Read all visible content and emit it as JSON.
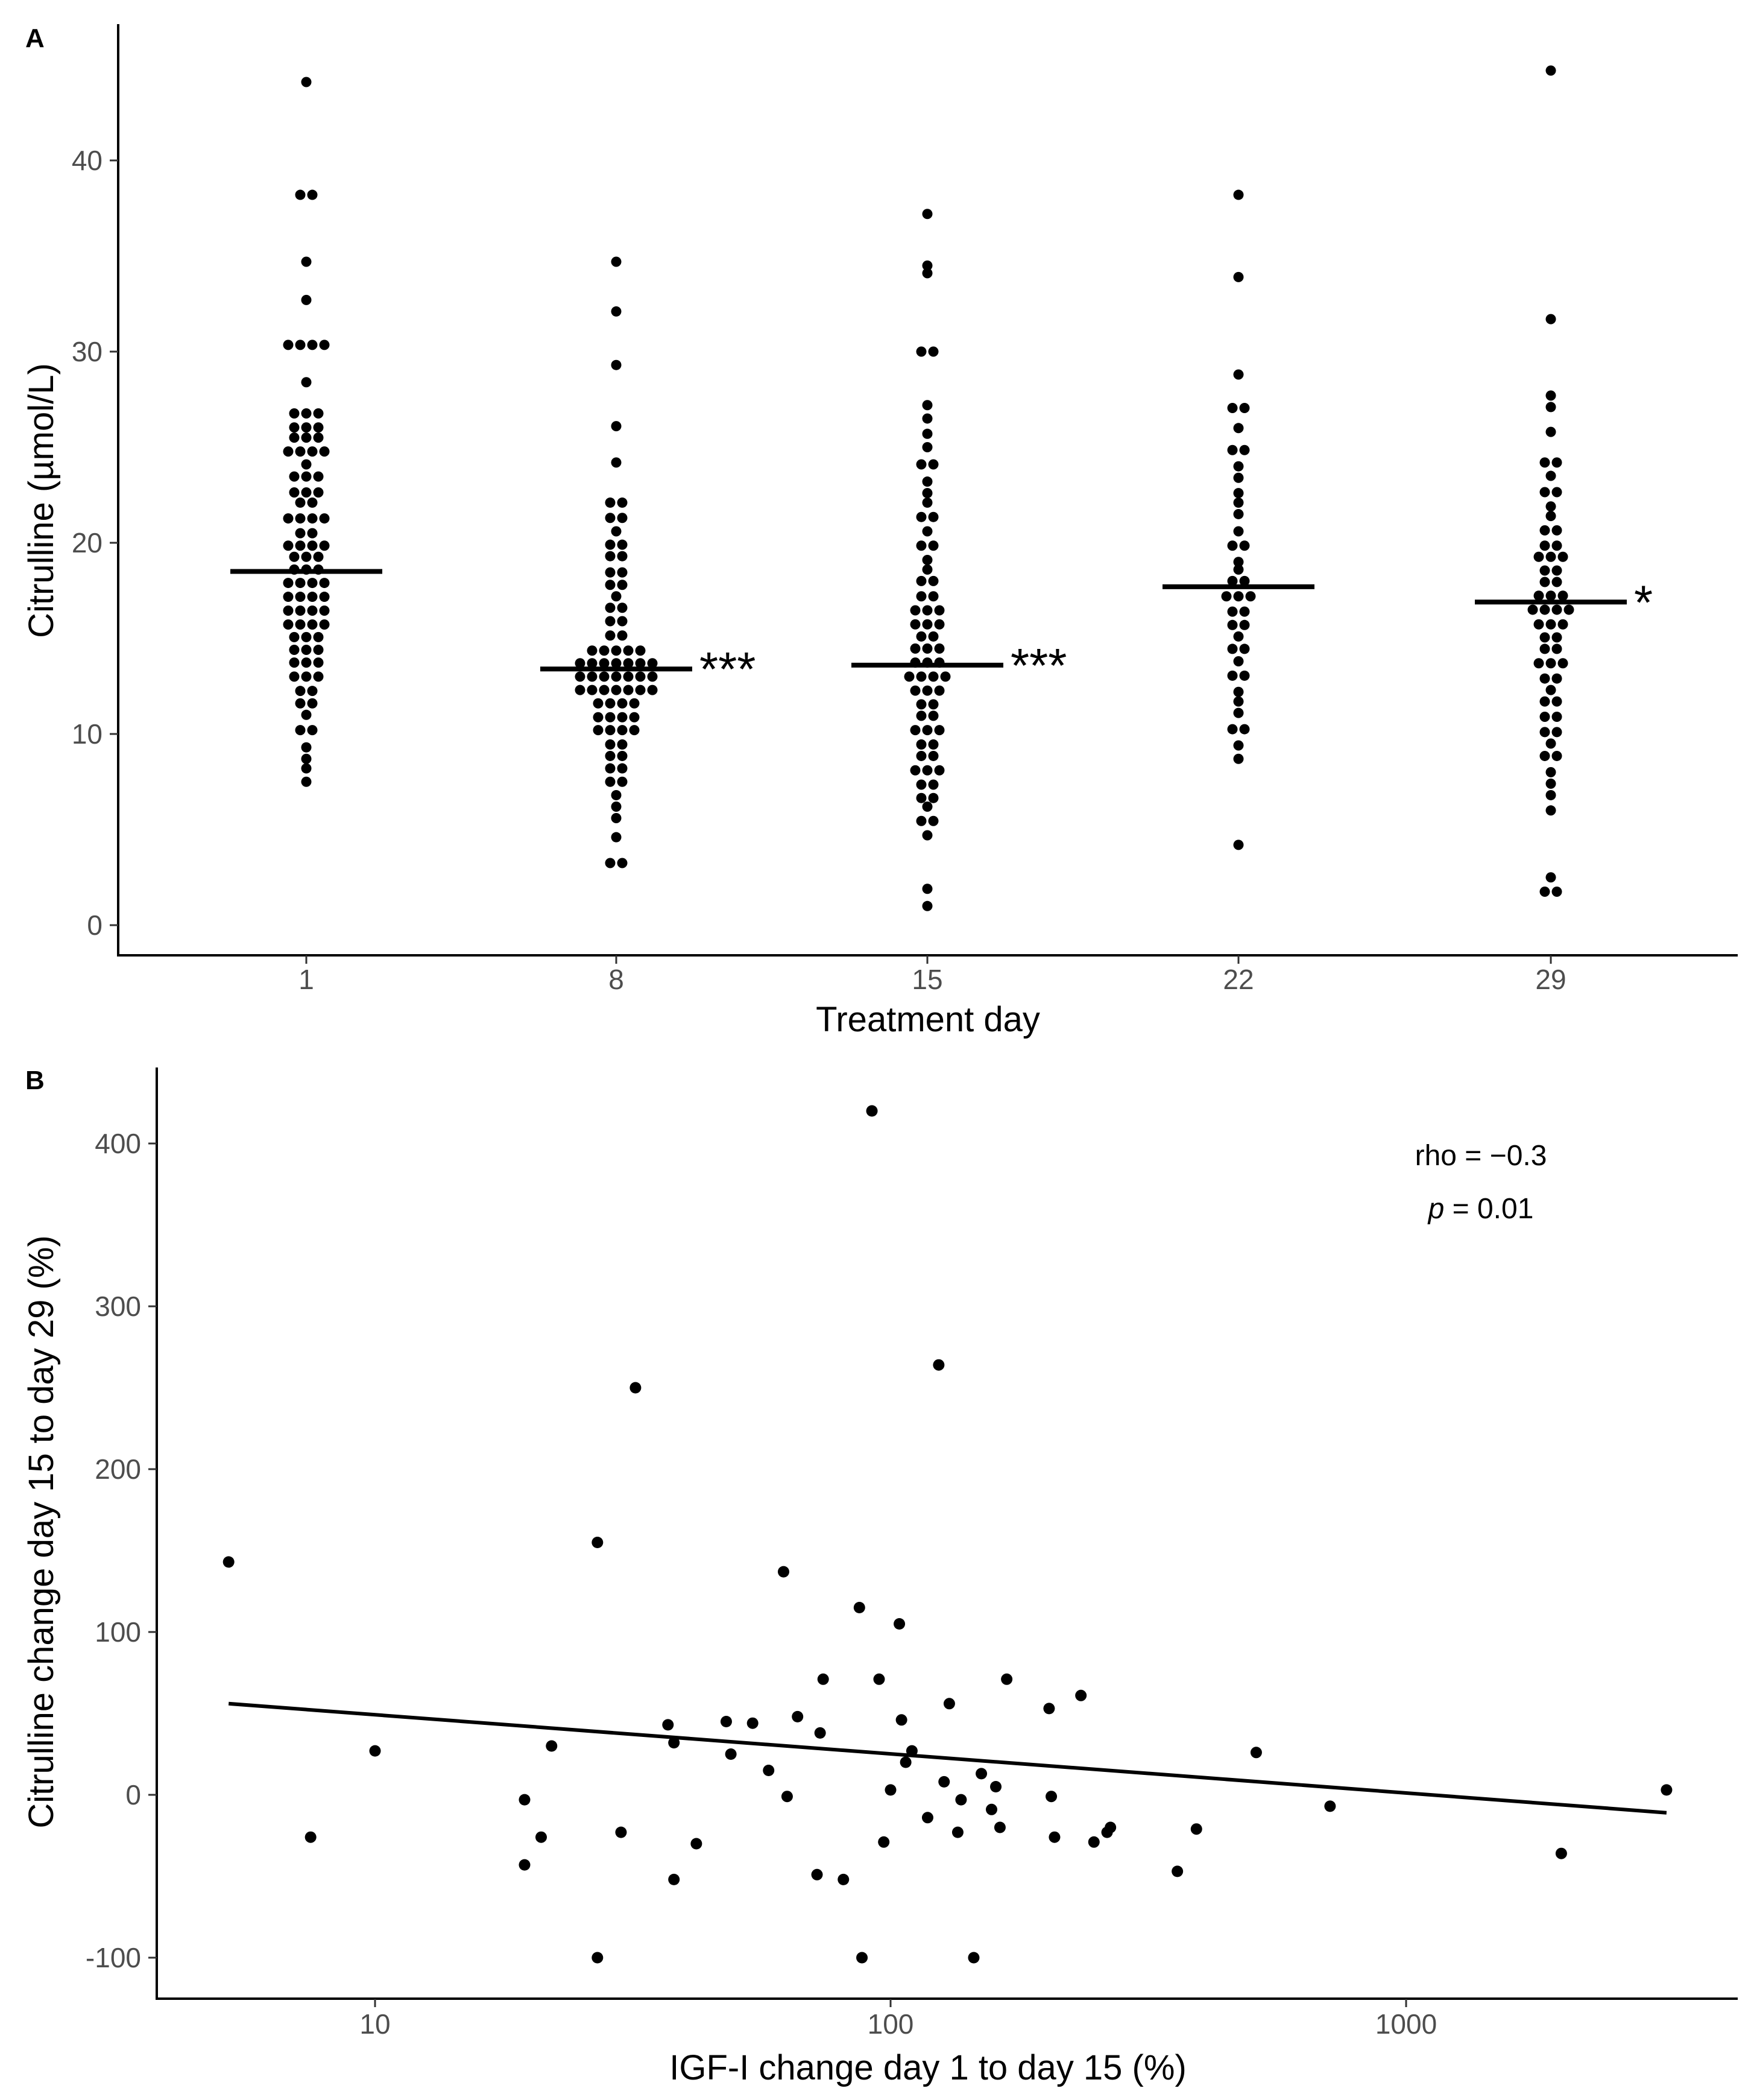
{
  "chart_data": [
    {
      "panel": "A",
      "type": "scatter",
      "subtype": "dot-plot (beeswarm) with median bars",
      "title": "",
      "xlabel": "Treatment day",
      "ylabel": "Citrulline (µmol/L)",
      "categories": [
        "1",
        "8",
        "15",
        "22",
        "29"
      ],
      "ylim": [
        0,
        45
      ],
      "yticks": [
        0,
        10,
        20,
        30,
        40
      ],
      "grid": false,
      "medians": [
        18.5,
        13.4,
        13.6,
        17.7,
        16.9
      ],
      "significance": [
        "",
        "***",
        "***",
        "",
        "*"
      ],
      "series": [
        {
          "name": "1",
          "values": [
            44.1,
            38.2,
            38.2,
            34.7,
            32.7,
            30.6,
            30.6,
            30.1,
            30.1,
            28.4,
            26.9,
            26.7,
            26.7,
            26.1,
            26.0,
            26.0,
            25.7,
            25.5,
            25.3,
            25.0,
            24.9,
            24.7,
            24.5,
            24.1,
            23.6,
            23.6,
            23.2,
            22.9,
            22.6,
            22.4,
            22.2,
            22.0,
            21.6,
            21.3,
            21.2,
            21.0,
            20.6,
            20.4,
            20.2,
            19.9,
            19.7,
            19.6,
            19.5,
            19.3,
            19.0,
            18.8,
            18.6,
            18.4,
            18.2,
            18.0,
            17.8,
            17.6,
            17.4,
            17.3,
            17.1,
            16.9,
            16.7,
            16.5,
            16.4,
            16.2,
            16.0,
            15.8,
            15.6,
            15.5,
            15.3,
            15.1,
            14.8,
            14.6,
            14.4,
            14.2,
            14.0,
            13.7,
            13.5,
            13.3,
            13.0,
            12.7,
            12.4,
            12.1,
            11.8,
            11.4,
            11.0,
            10.5,
            9.9,
            9.3,
            8.7,
            8.2,
            7.5
          ]
        },
        {
          "name": "8",
          "values": [
            34.7,
            32.1,
            29.3,
            26.1,
            24.2,
            22.2,
            22.0,
            21.5,
            21.1,
            20.6,
            20.1,
            19.7,
            19.5,
            19.1,
            18.6,
            18.3,
            18.0,
            17.6,
            17.2,
            16.8,
            16.4,
            16.1,
            15.7,
            15.3,
            15.0,
            14.7,
            14.5,
            14.3,
            14.2,
            14.1,
            14.0,
            13.9,
            13.8,
            13.7,
            13.6,
            13.5,
            13.4,
            13.3,
            13.2,
            13.1,
            13.0,
            12.9,
            12.8,
            12.7,
            12.6,
            12.5,
            12.4,
            12.3,
            12.2,
            12.1,
            12.0,
            11.9,
            11.7,
            11.5,
            11.3,
            11.1,
            10.9,
            10.8,
            10.7,
            10.5,
            10.3,
            10.1,
            9.9,
            9.6,
            9.3,
            9.0,
            8.7,
            8.4,
            8.0,
            7.7,
            7.3,
            6.8,
            6.2,
            5.6,
            4.6,
            3.3,
            3.2
          ]
        },
        {
          "name": "15",
          "values": [
            37.2,
            34.5,
            34.1,
            30.0,
            30.0,
            27.2,
            26.5,
            25.7,
            25.0,
            24.4,
            23.8,
            23.2,
            22.6,
            22.1,
            21.6,
            21.1,
            20.6,
            20.1,
            19.6,
            19.1,
            18.6,
            18.2,
            17.8,
            17.4,
            17.0,
            16.7,
            16.5,
            16.2,
            16.0,
            15.7,
            15.5,
            15.2,
            15.0,
            14.7,
            14.5,
            14.2,
            14.0,
            13.7,
            13.5,
            13.3,
            13.1,
            12.9,
            12.7,
            12.5,
            12.3,
            12.0,
            11.7,
            11.4,
            11.1,
            10.8,
            10.5,
            10.2,
            9.9,
            9.6,
            9.3,
            9.0,
            8.7,
            8.4,
            8.1,
            7.8,
            7.5,
            7.2,
            6.8,
            6.5,
            6.2,
            5.7,
            5.2,
            4.7,
            1.9,
            1.0
          ]
        },
        {
          "name": "22",
          "values": [
            38.2,
            33.9,
            28.8,
            27.1,
            27.0,
            26.0,
            25.1,
            24.6,
            24.0,
            23.4,
            22.6,
            22.1,
            21.5,
            20.6,
            20.1,
            19.6,
            19.0,
            18.6,
            18.2,
            17.8,
            17.5,
            17.2,
            16.9,
            16.6,
            16.2,
            15.9,
            15.5,
            15.1,
            14.7,
            14.2,
            13.8,
            13.3,
            12.8,
            12.2,
            11.7,
            11.1,
            10.5,
            10.0,
            9.4,
            8.7,
            4.2
          ]
        },
        {
          "name": "29",
          "values": [
            44.7,
            31.7,
            27.7,
            27.1,
            25.8,
            24.4,
            24.0,
            23.5,
            22.9,
            22.4,
            21.9,
            21.4,
            20.9,
            20.4,
            20.0,
            19.7,
            19.5,
            19.3,
            19.0,
            18.7,
            18.4,
            18.1,
            17.8,
            17.5,
            17.2,
            17.0,
            16.8,
            16.6,
            16.4,
            16.2,
            16.0,
            15.7,
            15.5,
            15.2,
            14.9,
            14.6,
            14.3,
            14.0,
            13.7,
            13.4,
            13.1,
            12.7,
            12.3,
            11.9,
            11.5,
            11.1,
            10.7,
            10.3,
            9.9,
            9.5,
            9.1,
            8.6,
            8.0,
            7.4,
            6.8,
            6.0,
            2.5,
            1.8,
            1.7
          ]
        }
      ]
    },
    {
      "panel": "B",
      "type": "scatter",
      "title": "",
      "xlabel": "IGF-I change day 1 to day 15 (%)",
      "ylabel": "Citrulline change day 15 to day 29 (%)",
      "xscale": "log",
      "xlim": [
        4.2,
        3600
      ],
      "xticks": [
        10,
        100,
        1000
      ],
      "ylim": [
        -125,
        450
      ],
      "yticks": [
        -100,
        0,
        100,
        200,
        300,
        400
      ],
      "grid": false,
      "annotation": {
        "rho": "rho = −0.3",
        "p_symbol": "p",
        "p_value": " = 0.01"
      },
      "trendline": {
        "x": [
          5.2,
          3200
        ],
        "y": [
          56,
          -11
        ]
      },
      "points": [
        [
          5.2,
          143
        ],
        [
          7.5,
          -26
        ],
        [
          10,
          27
        ],
        [
          19.5,
          -3
        ],
        [
          19.5,
          -43
        ],
        [
          21,
          -26
        ],
        [
          22,
          30
        ],
        [
          27,
          155
        ],
        [
          27,
          -100
        ],
        [
          30,
          -23
        ],
        [
          32,
          250
        ],
        [
          37,
          43
        ],
        [
          38,
          32
        ],
        [
          38,
          -52
        ],
        [
          42,
          -30
        ],
        [
          48,
          45
        ],
        [
          49,
          25
        ],
        [
          54,
          44
        ],
        [
          58,
          15
        ],
        [
          62,
          137
        ],
        [
          63,
          -1
        ],
        [
          66,
          48
        ],
        [
          72,
          -49
        ],
        [
          73,
          38
        ],
        [
          74,
          71
        ],
        [
          81,
          -52
        ],
        [
          87,
          115
        ],
        [
          88,
          -100
        ],
        [
          92,
          420
        ],
        [
          95,
          71
        ],
        [
          97,
          -29
        ],
        [
          100,
          3
        ],
        [
          104,
          105
        ],
        [
          105,
          46
        ],
        [
          107,
          20
        ],
        [
          110,
          27
        ],
        [
          118,
          -14
        ],
        [
          124,
          264
        ],
        [
          127,
          8
        ],
        [
          130,
          56
        ],
        [
          135,
          -23
        ],
        [
          137,
          -3
        ],
        [
          145,
          -100
        ],
        [
          150,
          13
        ],
        [
          157,
          -9
        ],
        [
          160,
          5
        ],
        [
          163,
          -20
        ],
        [
          168,
          71
        ],
        [
          203,
          53
        ],
        [
          205,
          -1
        ],
        [
          208,
          -26
        ],
        [
          234,
          61
        ],
        [
          248,
          -29
        ],
        [
          263,
          -23
        ],
        [
          267,
          -20
        ],
        [
          360,
          -47
        ],
        [
          392,
          -21
        ],
        [
          512,
          26
        ],
        [
          712,
          -7
        ],
        [
          2000,
          -36
        ],
        [
          3200,
          3
        ]
      ]
    }
  ]
}
